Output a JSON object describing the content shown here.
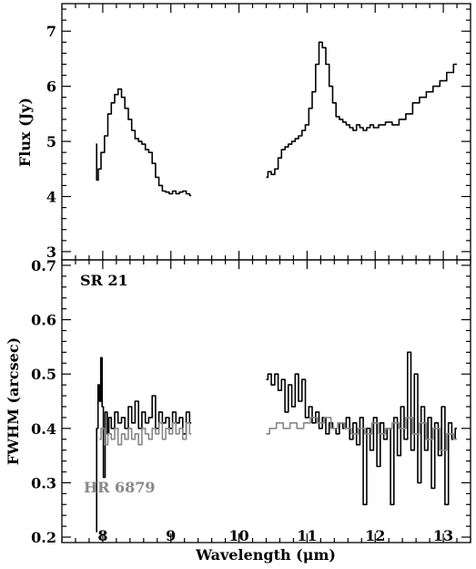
{
  "chart_data": [
    {
      "type": "line",
      "ylabel": "Flux (Jy)",
      "xlabel": "",
      "xlim": [
        7.4,
        13.4
      ],
      "ylim": [
        2.85,
        7.5
      ],
      "xticks": [
        8,
        9,
        10,
        11,
        12,
        13
      ],
      "yticks": [
        3,
        4,
        5,
        6,
        7
      ],
      "ytick_labels": [
        "3",
        "4",
        "5",
        "6",
        "7"
      ],
      "grid": false,
      "series": [
        {
          "color": "#000000",
          "segments": [
            {
              "x": [
                7.9,
                7.92,
                7.95,
                8.0,
                8.05,
                8.1,
                8.15,
                8.2,
                8.25,
                8.3,
                8.35,
                8.4,
                8.45,
                8.5,
                8.55,
                8.6,
                8.65,
                8.7,
                8.75,
                8.8,
                8.85,
                8.9,
                8.95,
                9.0,
                9.05,
                9.1,
                9.15,
                9.2,
                9.25,
                9.3
              ],
              "y": [
                4.95,
                4.3,
                4.5,
                4.8,
                5.1,
                5.5,
                5.7,
                5.85,
                5.95,
                5.8,
                5.6,
                5.4,
                5.2,
                5.05,
                5.0,
                4.95,
                4.85,
                4.8,
                4.6,
                4.35,
                4.2,
                4.1,
                4.08,
                4.05,
                4.1,
                4.05,
                4.08,
                4.1,
                4.05,
                4.02
              ]
            },
            {
              "x": [
                10.4,
                10.45,
                10.5,
                10.55,
                10.6,
                10.65,
                10.7,
                10.75,
                10.8,
                10.85,
                10.9,
                10.95,
                11.0,
                11.05,
                11.1,
                11.15,
                11.2,
                11.25,
                11.3,
                11.35,
                11.4,
                11.45,
                11.5,
                11.55,
                11.6,
                11.65,
                11.7,
                11.75,
                11.8,
                11.85,
                11.9,
                11.95,
                12.0,
                12.1,
                12.2,
                12.3,
                12.4,
                12.5,
                12.6,
                12.7,
                12.8,
                12.9,
                13.0,
                13.1,
                13.2
              ],
              "y": [
                4.35,
                4.45,
                4.4,
                4.5,
                4.7,
                4.85,
                4.9,
                4.95,
                5.0,
                5.05,
                5.1,
                5.2,
                5.3,
                5.6,
                5.9,
                6.4,
                6.8,
                6.7,
                6.4,
                6.0,
                5.7,
                5.45,
                5.4,
                5.35,
                5.3,
                5.25,
                5.2,
                5.3,
                5.25,
                5.2,
                5.25,
                5.3,
                5.25,
                5.3,
                5.35,
                5.3,
                5.4,
                5.5,
                5.7,
                5.8,
                5.9,
                6.0,
                6.1,
                6.25,
                6.4
              ]
            }
          ]
        }
      ]
    },
    {
      "type": "line",
      "ylabel": "FWHM (arcsec)",
      "xlabel": "Wavelength (μm)",
      "xlim": [
        7.4,
        13.4
      ],
      "ylim": [
        0.19,
        0.71
      ],
      "xticks": [
        8,
        9,
        10,
        11,
        12,
        13
      ],
      "xtick_labels": [
        "8",
        "9",
        "10",
        "11",
        "12",
        "13"
      ],
      "yticks": [
        0.2,
        0.3,
        0.4,
        0.5,
        0.6,
        0.7
      ],
      "ytick_labels": [
        "0.2",
        "0.3",
        "0.4",
        "0.5",
        "0.6",
        "0.7"
      ],
      "grid": false,
      "annotations": [
        {
          "text": "SR 21",
          "color": "#000000",
          "position": "top-left"
        },
        {
          "text": "HR 6879",
          "color": "#888888",
          "position": "bottom-left"
        }
      ],
      "series": [
        {
          "name": "SR 21",
          "color": "#000000",
          "segments": [
            {
              "x": [
                7.9,
                7.92,
                7.94,
                7.96,
                7.98,
                8.0,
                8.02,
                8.05,
                8.08,
                8.1,
                8.15,
                8.2,
                8.25,
                8.3,
                8.35,
                8.4,
                8.45,
                8.5,
                8.55,
                8.6,
                8.65,
                8.7,
                8.75,
                8.8,
                8.85,
                8.9,
                8.95,
                9.0,
                9.05,
                9.1,
                9.15,
                9.2,
                9.25,
                9.3
              ],
              "y": [
                0.21,
                0.4,
                0.48,
                0.45,
                0.53,
                0.44,
                0.31,
                0.43,
                0.39,
                0.42,
                0.4,
                0.43,
                0.41,
                0.42,
                0.4,
                0.44,
                0.41,
                0.45,
                0.4,
                0.43,
                0.41,
                0.42,
                0.46,
                0.4,
                0.43,
                0.41,
                0.42,
                0.4,
                0.43,
                0.41,
                0.42,
                0.39,
                0.43,
                0.41
              ]
            },
            {
              "x": [
                10.4,
                10.45,
                10.5,
                10.55,
                10.6,
                10.65,
                10.7,
                10.75,
                10.8,
                10.85,
                10.9,
                10.95,
                11.0,
                11.05,
                11.1,
                11.15,
                11.2,
                11.25,
                11.3,
                11.35,
                11.4,
                11.45,
                11.5,
                11.55,
                11.6,
                11.65,
                11.7,
                11.75,
                11.8,
                11.85,
                11.9,
                11.95,
                12.0,
                12.05,
                12.1,
                12.15,
                12.2,
                12.25,
                12.3,
                12.35,
                12.4,
                12.45,
                12.5,
                12.55,
                12.6,
                12.65,
                12.7,
                12.75,
                12.8,
                12.85,
                12.9,
                12.95,
                13.0,
                13.05,
                13.1,
                13.15,
                13.2
              ],
              "y": [
                0.49,
                0.5,
                0.48,
                0.5,
                0.47,
                0.49,
                0.43,
                0.48,
                0.44,
                0.5,
                0.45,
                0.49,
                0.42,
                0.44,
                0.41,
                0.43,
                0.4,
                0.42,
                0.39,
                0.41,
                0.4,
                0.39,
                0.41,
                0.4,
                0.42,
                0.38,
                0.41,
                0.37,
                0.42,
                0.26,
                0.4,
                0.36,
                0.42,
                0.33,
                0.41,
                0.38,
                0.4,
                0.26,
                0.42,
                0.35,
                0.44,
                0.38,
                0.54,
                0.36,
                0.5,
                0.3,
                0.44,
                0.36,
                0.42,
                0.29,
                0.41,
                0.35,
                0.44,
                0.26,
                0.41,
                0.38,
                0.4
              ]
            }
          ]
        },
        {
          "name": "HR 6879",
          "color": "#888888",
          "segments": [
            {
              "x": [
                7.95,
                8.0,
                8.05,
                8.1,
                8.15,
                8.2,
                8.25,
                8.3,
                8.35,
                8.4,
                8.45,
                8.5,
                8.55,
                8.6,
                8.65,
                8.7,
                8.75,
                8.8,
                8.85,
                8.9,
                8.95,
                9.0,
                9.05,
                9.1,
                9.15,
                9.2,
                9.25,
                9.3
              ],
              "y": [
                0.38,
                0.4,
                0.37,
                0.39,
                0.38,
                0.4,
                0.37,
                0.39,
                0.38,
                0.4,
                0.38,
                0.39,
                0.37,
                0.4,
                0.39,
                0.38,
                0.4,
                0.39,
                0.41,
                0.38,
                0.4,
                0.39,
                0.41,
                0.39,
                0.4,
                0.38,
                0.41,
                0.39
              ]
            },
            {
              "x": [
                10.4,
                10.5,
                10.6,
                10.7,
                10.8,
                10.9,
                11.0,
                11.1,
                11.2,
                11.3,
                11.4,
                11.5,
                11.6,
                11.7,
                11.8,
                11.9,
                12.0,
                12.1,
                12.2,
                12.3,
                12.4,
                12.5,
                12.6,
                12.7,
                12.8,
                12.9,
                13.0,
                13.1,
                13.2
              ],
              "y": [
                0.39,
                0.4,
                0.41,
                0.4,
                0.41,
                0.4,
                0.41,
                0.42,
                0.41,
                0.42,
                0.4,
                0.41,
                0.4,
                0.39,
                0.4,
                0.39,
                0.41,
                0.39,
                0.4,
                0.41,
                0.4,
                0.42,
                0.39,
                0.41,
                0.38,
                0.4,
                0.36,
                0.39,
                0.38
              ]
            }
          ]
        }
      ]
    }
  ]
}
